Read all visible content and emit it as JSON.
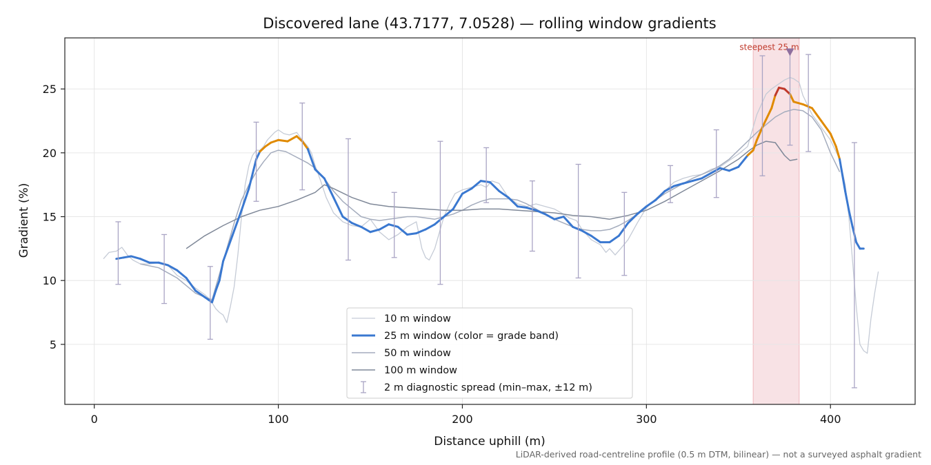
{
  "chart_data": {
    "type": "line",
    "title": "Discovered lane (43.7177, 7.0528) — rolling window gradients",
    "xlabel": "Distance uphill (m)",
    "ylabel": "Gradient (%)",
    "xlim": [
      -16,
      446
    ],
    "ylim": [
      0.3,
      29
    ],
    "xticks": [
      0,
      100,
      200,
      300,
      400
    ],
    "yticks": [
      5,
      10,
      15,
      20,
      25
    ],
    "xtick_labels": [
      "0",
      "100",
      "200",
      "300",
      "400"
    ],
    "ytick_labels": [
      "5",
      "10",
      "15",
      "20",
      "25"
    ],
    "grid": true,
    "legend_position": "lower-center",
    "footnote": "LiDAR-derived road-centreline profile (0.5 m DTM, bilinear) — not a surveyed asphalt gradient",
    "annotation": {
      "label": "steepest 25 m",
      "x": 378,
      "y": 27.9
    },
    "highlight_band": {
      "x0": 358,
      "x1": 383,
      "color": "#e8a0a8"
    },
    "grade_threshold": 20,
    "colors": {
      "normal": "#3a78d0",
      "steep": "#e08a00",
      "peak": "#c0392b"
    },
    "legend": [
      {
        "label": "10 m window",
        "kind": "line",
        "color": "#c5cbd6",
        "width": 1.3
      },
      {
        "label": "25 m window (color = grade band)",
        "kind": "line",
        "color": "#3a78d0",
        "width": 3
      },
      {
        "label": "50 m window",
        "kind": "line",
        "color": "#a4acbd",
        "width": 1.5
      },
      {
        "label": "100 m window",
        "kind": "line",
        "color": "#7f8898",
        "width": 1.5
      },
      {
        "label": "2 m diagnostic spread (min–max, ±12 m)",
        "kind": "errorbar",
        "color": "#a9a4c4",
        "width": 1.3
      }
    ],
    "series": [
      {
        "name": "10 m window",
        "color": "#c5cbd6",
        "width": 1.3,
        "x": [
          5,
          8,
          12,
          15,
          18,
          21,
          25,
          30,
          35,
          40,
          45,
          50,
          55,
          60,
          63,
          66,
          68,
          70,
          72,
          74,
          76,
          78,
          80,
          82,
          84,
          86,
          88,
          90,
          92,
          94,
          96,
          98,
          100,
          103,
          106,
          110,
          113,
          116,
          118,
          120,
          123,
          126,
          130,
          135,
          140,
          145,
          150,
          155,
          160,
          165,
          170,
          175,
          178,
          180,
          182,
          185,
          188,
          190,
          193,
          196,
          200,
          205,
          210,
          213,
          216,
          220,
          225,
          230,
          235,
          240,
          245,
          250,
          255,
          258,
          262,
          265,
          270,
          275,
          278,
          280,
          283,
          286,
          290,
          295,
          300,
          305,
          310,
          315,
          320,
          325,
          330,
          335,
          340,
          345,
          350,
          355,
          360,
          365,
          368,
          372,
          375,
          378,
          380,
          383,
          385,
          390,
          395,
          400,
          405,
          408,
          410,
          412,
          414,
          416,
          418,
          420,
          422,
          424,
          426
        ],
        "y": [
          11.7,
          12.2,
          12.3,
          12.6,
          12.0,
          11.6,
          11.3,
          11.3,
          11.4,
          11.2,
          10.4,
          10.0,
          9.4,
          8.9,
          8.5,
          7.8,
          7.5,
          7.3,
          6.7,
          8.0,
          9.5,
          12.0,
          15.0,
          17.5,
          19.0,
          19.8,
          20.2,
          20.2,
          20.5,
          21.0,
          21.3,
          21.6,
          21.8,
          21.5,
          21.4,
          21.6,
          21.0,
          20.5,
          20.0,
          19.0,
          17.8,
          16.5,
          15.3,
          14.6,
          14.3,
          14.2,
          14.8,
          13.8,
          13.2,
          13.6,
          14.2,
          14.6,
          12.5,
          11.8,
          11.6,
          12.5,
          14.0,
          15.0,
          16.0,
          16.8,
          17.1,
          17.3,
          17.5,
          17.3,
          17.8,
          17.6,
          16.5,
          16.0,
          15.8,
          16.0,
          15.8,
          15.6,
          15.2,
          14.9,
          14.7,
          14.0,
          13.2,
          12.8,
          12.2,
          12.5,
          12.0,
          12.5,
          13.2,
          14.5,
          15.7,
          16.4,
          17.0,
          17.7,
          18.0,
          18.2,
          18.3,
          18.7,
          18.9,
          19.4,
          19.9,
          20.5,
          23.0,
          24.6,
          25.0,
          25.4,
          25.7,
          25.9,
          25.8,
          25.5,
          24.5,
          23.0,
          22.0,
          21.0,
          19.5,
          17.5,
          15.0,
          11.5,
          8.0,
          5.0,
          4.5,
          4.3,
          7.0,
          9.0,
          10.7
        ]
      },
      {
        "name": "50 m window",
        "color": "#a4acbd",
        "width": 1.5,
        "x": [
          25,
          35,
          45,
          50,
          55,
          60,
          64,
          68,
          72,
          76,
          80,
          84,
          88,
          92,
          96,
          100,
          104,
          108,
          112,
          116,
          120,
          125,
          130,
          135,
          140,
          145,
          150,
          155,
          160,
          165,
          170,
          175,
          180,
          185,
          190,
          195,
          200,
          205,
          210,
          215,
          220,
          225,
          230,
          235,
          240,
          245,
          250,
          255,
          260,
          265,
          270,
          275,
          280,
          285,
          290,
          295,
          300,
          305,
          310,
          315,
          320,
          325,
          330,
          335,
          340,
          345,
          350,
          355,
          360,
          365,
          370,
          375,
          380,
          385,
          390,
          395,
          400,
          405
        ],
        "y": [
          11.3,
          11.0,
          10.2,
          9.6,
          9.0,
          8.7,
          8.5,
          10.5,
          12.5,
          14.5,
          16.3,
          17.5,
          18.5,
          19.3,
          20.0,
          20.2,
          20.1,
          19.8,
          19.5,
          19.2,
          18.8,
          18.0,
          17.0,
          16.2,
          15.6,
          15.0,
          14.8,
          14.7,
          14.8,
          14.9,
          15.0,
          15.0,
          14.9,
          14.8,
          15.0,
          15.2,
          15.5,
          15.9,
          16.2,
          16.4,
          16.4,
          16.4,
          16.3,
          16.0,
          15.6,
          15.2,
          14.8,
          14.5,
          14.2,
          14.0,
          13.9,
          13.9,
          14.0,
          14.3,
          14.7,
          15.2,
          15.8,
          16.3,
          16.8,
          17.2,
          17.6,
          18.0,
          18.3,
          18.6,
          19.0,
          19.5,
          20.2,
          20.9,
          21.6,
          22.2,
          22.8,
          23.2,
          23.4,
          23.3,
          22.8,
          21.8,
          20.0,
          18.5
        ]
      },
      {
        "name": "100 m window",
        "color": "#7f8898",
        "width": 1.5,
        "x": [
          50,
          60,
          70,
          80,
          90,
          100,
          110,
          120,
          125,
          130,
          140,
          150,
          160,
          170,
          180,
          190,
          200,
          210,
          220,
          230,
          240,
          250,
          260,
          270,
          280,
          290,
          300,
          310,
          320,
          330,
          340,
          350,
          356,
          360,
          365,
          370,
          375,
          378,
          382
        ],
        "y": [
          12.5,
          13.5,
          14.3,
          15.0,
          15.5,
          15.8,
          16.3,
          16.9,
          17.5,
          17.2,
          16.5,
          16.0,
          15.8,
          15.7,
          15.6,
          15.5,
          15.5,
          15.6,
          15.6,
          15.5,
          15.4,
          15.3,
          15.1,
          15.0,
          14.8,
          15.1,
          15.5,
          16.2,
          17.0,
          17.8,
          18.6,
          19.5,
          20.2,
          20.6,
          20.9,
          20.8,
          19.8,
          19.4,
          19.5
        ]
      },
      {
        "name": "25 m window (color = grade band)",
        "color": "#3a78d0",
        "width": 3,
        "x": [
          12,
          16,
          20,
          25,
          30,
          35,
          40,
          45,
          50,
          55,
          60,
          64,
          66,
          68,
          70,
          75,
          80,
          84,
          88,
          90,
          93,
          96,
          100,
          105,
          110,
          113,
          116,
          120,
          125,
          130,
          135,
          140,
          145,
          150,
          155,
          160,
          165,
          170,
          175,
          180,
          185,
          190,
          195,
          200,
          205,
          210,
          215,
          220,
          225,
          230,
          235,
          240,
          245,
          250,
          255,
          260,
          265,
          270,
          275,
          280,
          285,
          290,
          295,
          300,
          305,
          310,
          315,
          320,
          325,
          330,
          335,
          340,
          345,
          350,
          355,
          358,
          360,
          363,
          365,
          368,
          370,
          372,
          375,
          378,
          380,
          385,
          390,
          395,
          400,
          403,
          405,
          408,
          410,
          412,
          414,
          416,
          418
        ],
        "y": [
          11.7,
          11.8,
          11.9,
          11.7,
          11.4,
          11.4,
          11.2,
          10.8,
          10.2,
          9.2,
          8.7,
          8.3,
          9.2,
          10.0,
          11.5,
          13.5,
          15.5,
          17.2,
          19.5,
          20.1,
          20.5,
          20.8,
          21.0,
          20.9,
          21.3,
          20.9,
          20.3,
          18.7,
          18.0,
          16.5,
          15.0,
          14.5,
          14.2,
          13.8,
          14.0,
          14.4,
          14.2,
          13.6,
          13.7,
          14.0,
          14.4,
          15.0,
          15.6,
          16.8,
          17.2,
          17.8,
          17.7,
          17.0,
          16.5,
          15.8,
          15.7,
          15.5,
          15.2,
          14.8,
          15.0,
          14.2,
          13.9,
          13.5,
          13.0,
          13.0,
          13.5,
          14.5,
          15.2,
          15.8,
          16.3,
          17.0,
          17.4,
          17.6,
          17.8,
          18.0,
          18.4,
          18.8,
          18.6,
          18.9,
          19.8,
          20.2,
          21.0,
          22.0,
          22.6,
          23.5,
          24.5,
          25.1,
          25.0,
          24.6,
          24.0,
          23.8,
          23.5,
          22.5,
          21.5,
          20.5,
          19.5,
          17.0,
          15.5,
          14.2,
          13.0,
          12.5,
          12.5
        ]
      }
    ],
    "errorbars": [
      {
        "x": 13,
        "min": 9.7,
        "max": 14.6
      },
      {
        "x": 38,
        "min": 8.2,
        "max": 13.6
      },
      {
        "x": 63,
        "min": 5.4,
        "max": 11.1
      },
      {
        "x": 88,
        "min": 16.2,
        "max": 22.4
      },
      {
        "x": 113,
        "min": 17.1,
        "max": 23.9
      },
      {
        "x": 138,
        "min": 11.6,
        "max": 21.1
      },
      {
        "x": 163,
        "min": 11.8,
        "max": 16.9
      },
      {
        "x": 188,
        "min": 9.7,
        "max": 20.9
      },
      {
        "x": 213,
        "min": 16.1,
        "max": 20.4
      },
      {
        "x": 238,
        "min": 12.3,
        "max": 17.8
      },
      {
        "x": 263,
        "min": 10.2,
        "max": 19.1
      },
      {
        "x": 288,
        "min": 10.4,
        "max": 16.9
      },
      {
        "x": 313,
        "min": 16.1,
        "max": 19.0
      },
      {
        "x": 338,
        "min": 16.5,
        "max": 21.8
      },
      {
        "x": 363,
        "min": 18.2,
        "max": 27.6
      },
      {
        "x": 378,
        "min": 20.6,
        "max": 28.0
      },
      {
        "x": 388,
        "min": 20.1,
        "max": 27.7
      },
      {
        "x": 413,
        "min": 1.6,
        "max": 20.8
      }
    ]
  }
}
